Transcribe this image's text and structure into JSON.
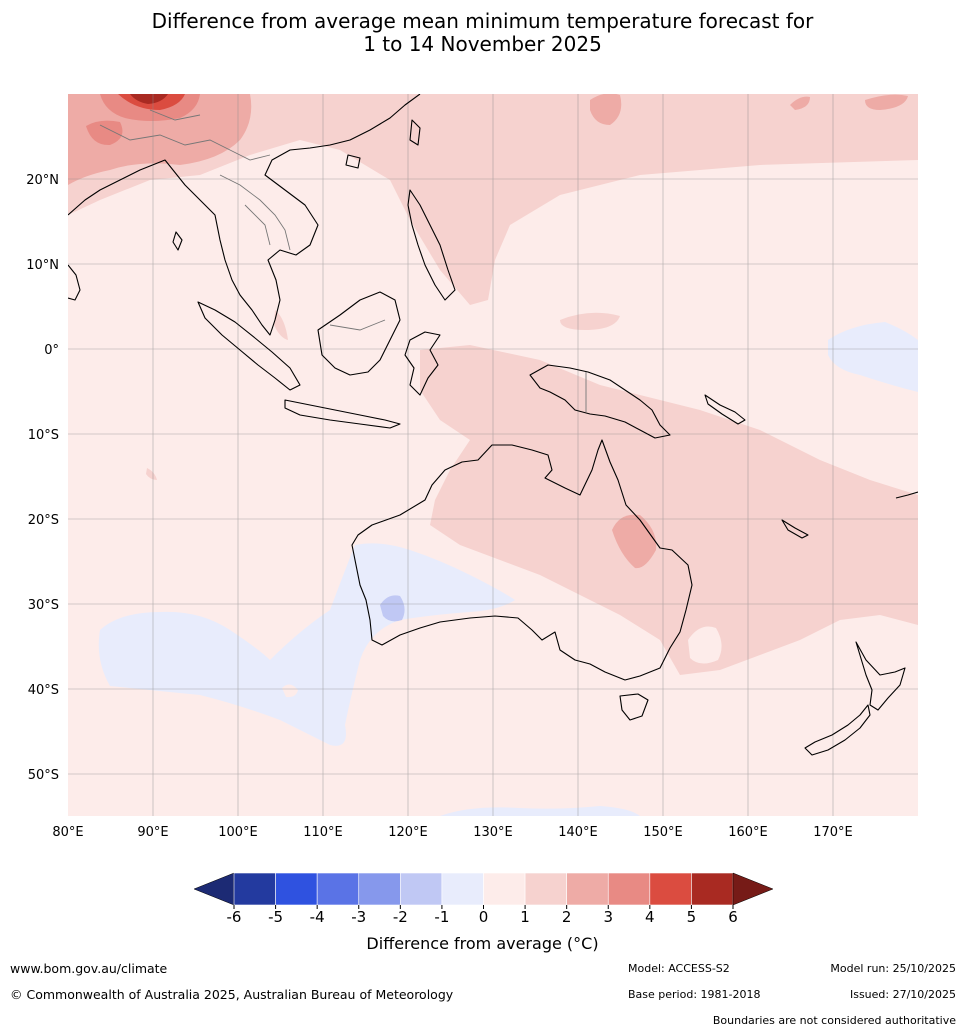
{
  "title": {
    "line1": "Difference from average mean minimum temperature forecast for",
    "line2": "1 to 14 November 2025"
  },
  "map": {
    "lon_labels": [
      "80°E",
      "90°E",
      "100°E",
      "110°E",
      "120°E",
      "130°E",
      "140°E",
      "150°E",
      "160°E",
      "170°E"
    ],
    "lat_labels": [
      "20°N",
      "10°N",
      "0°",
      "10°S",
      "20°S",
      "30°S",
      "40°S",
      "50°S"
    ],
    "extent": {
      "lon_min": 80,
      "lon_max": 180,
      "lat_min": -55,
      "lat_max": 30
    }
  },
  "colorbar": {
    "ticks": [
      "-6",
      "-5",
      "-4",
      "-3",
      "-2",
      "-1",
      "0",
      "1",
      "2",
      "3",
      "4",
      "5",
      "6"
    ],
    "colors": [
      "#233a9f",
      "#2f52e0",
      "#5a73e6",
      "#8698ec",
      "#c0c8f4",
      "#e8ecfc",
      "#fdecea",
      "#f6d2cf",
      "#eeaba6",
      "#e88a84",
      "#db4c40",
      "#a92a22"
    ],
    "under_color": "#1c2a74",
    "over_color": "#761b17",
    "label": "Difference from average (°C)"
  },
  "footer": {
    "website": "www.bom.gov.au/climate",
    "copyright": "© Commonwealth of Australia 2025, Australian Bureau of Meteorology",
    "model": "Model: ACCESS-S2",
    "base_period": "Base period: 1981-2018",
    "model_run": "Model run: 25/10/2025",
    "issued": "Issued: 27/10/2025",
    "disclaimer": "Boundaries are not considered authoritative"
  }
}
